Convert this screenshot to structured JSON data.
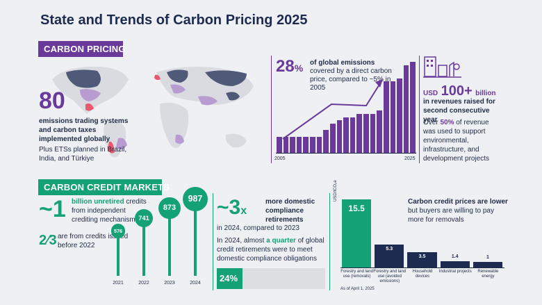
{
  "title": "State and Trends of Carbon Pricing 2025",
  "pricing": {
    "band": "CARBON PRICING",
    "count": "80",
    "count_desc": "emissions trading systems and carbon taxes implemented globally",
    "planned": "Plus ETSs planned in Brazil, India, and Türkiye",
    "coverage_pct": "28",
    "coverage_unit": "%",
    "coverage_lead": "of global emissions",
    "coverage_rest": "covered by a direct carbon price, compared to ~5% in 2005",
    "year_start": "2005",
    "year_end": "2025",
    "revenue_currency": "USD",
    "revenue_value": "100+",
    "revenue_unit": "billion",
    "revenue_desc": "in revenues raised for second consecutive year",
    "revenue_over": "Over",
    "revenue_half": "50%",
    "revenue_rest": "of revenue was used to support environmental, infrastructure, and development projects"
  },
  "coverage_bars": [
    5,
    5,
    5,
    5,
    5,
    5,
    5,
    7,
    9,
    10,
    11,
    11,
    12,
    12,
    12,
    13,
    22,
    22,
    23,
    27,
    28
  ],
  "credit": {
    "band": "CARBON CREDIT MARKETS",
    "unretired_num": "~1",
    "unretired_lead": "billion unretired",
    "unretired_rest": "credits from independent crediting mechanisms",
    "fraction": "2⁄3",
    "fraction_text": "are from credits issued before 2022",
    "domestic_num": "~3",
    "domestic_x": "x",
    "domestic_lead": "more domestic compliance retirements",
    "domestic_rest": "in 2024, compared to 2023",
    "quarter_pre": "In 2024, almost",
    "quarter_hl": "a quarter",
    "quarter_post": "of global credit retirements were to meet domestic compliance obligations",
    "quarter_pct": "24%",
    "quarter_value": 24,
    "prices_lead": "Carbon credit prices are lower",
    "prices_rest": "but buyers are willing to pay more for removals",
    "ylabel": "USD/tCO₂e",
    "as_of": "As of April 1, 2025"
  },
  "lollipops": [
    {
      "year": "2021",
      "value": 576,
      "label": "576"
    },
    {
      "year": "2022",
      "value": 741,
      "label": "741"
    },
    {
      "year": "2023",
      "value": 873,
      "label": "873"
    },
    {
      "year": "2024",
      "value": 987,
      "label": "987"
    }
  ],
  "chart_data": {
    "type": "bar",
    "categories": [
      "Forestry and land use (removals)",
      "Forestry and land use (avoided emissions)",
      "Household devices",
      "Industrial projects",
      "Renewable energy"
    ],
    "values": [
      15.5,
      5.3,
      3.5,
      1.4,
      1
    ],
    "labels": [
      "15.5",
      "5.3",
      "3.5",
      "1.4",
      "1"
    ],
    "ylabel": "USD/tCO₂e",
    "colors": [
      "#14a173",
      "#1c2b4f",
      "#1c2b4f",
      "#1c2b4f",
      "#1c2b4f"
    ]
  }
}
